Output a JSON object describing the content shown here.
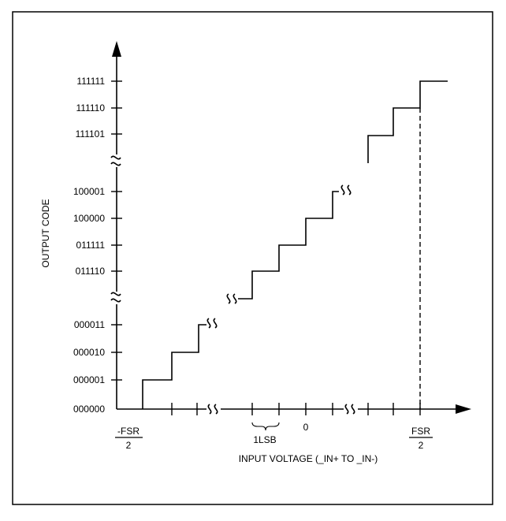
{
  "y_axis": {
    "title": "OUTPUT CODE",
    "codes": [
      "000000",
      "000001",
      "000010",
      "000011",
      "011110",
      "011111",
      "100000",
      "100001",
      "111101",
      "111110",
      "111111"
    ]
  },
  "x_axis": {
    "title": "INPUT VOLTAGE (_IN+ TO _IN-)",
    "neg_fsr_numerator": "-FSR",
    "neg_fsr_denominator": "2",
    "zero": "0",
    "fsr_numerator": "FSR",
    "fsr_denominator": "2",
    "lsb": "1LSB"
  }
}
